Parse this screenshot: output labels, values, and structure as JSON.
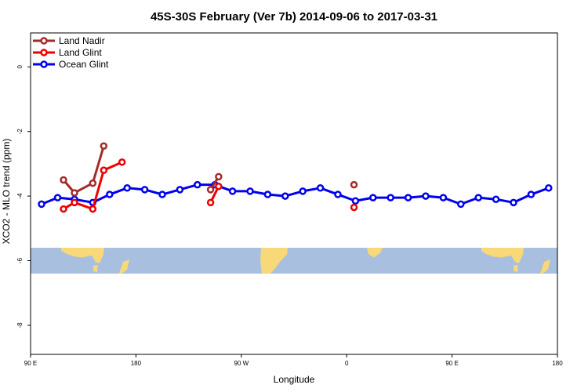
{
  "chart_data": {
    "type": "line",
    "title": "45S-30S February (Ver 7b)   2014-09-06 to 2017-03-31",
    "xlabel": "Longitude",
    "ylabel": "XCO2 - MLO trend (ppm)",
    "xlim": [
      90,
      450
    ],
    "ylim": [
      -8.9,
      1.05
    ],
    "x_ticks": [
      {
        "value": 90,
        "label": "90 E"
      },
      {
        "value": 162,
        "label": "180"
      },
      {
        "value": 234,
        "label": "90 W"
      },
      {
        "value": 306,
        "label": "0"
      },
      {
        "value": 378,
        "label": "90 E"
      },
      {
        "value": 450,
        "label": "180"
      }
    ],
    "y_ticks": [
      {
        "value": 0,
        "label": "0"
      },
      {
        "value": -2,
        "label": "-2"
      },
      {
        "value": -4,
        "label": "-4"
      },
      {
        "value": -6,
        "label": "-6"
      },
      {
        "value": -8,
        "label": "-8"
      }
    ],
    "legend_position": "top-left",
    "map_band": {
      "ymin": -6.4,
      "ymax": -5.6,
      "ocean_color": "#a9bfdf",
      "land_color": "#f8d878"
    },
    "series": [
      {
        "name": "Land Nadir",
        "color": "#a52a2a",
        "x": [
          112.5,
          120,
          132.5,
          140,
          213,
          218.5,
          311
        ],
        "y": [
          -3.5,
          -3.9,
          -3.6,
          -2.45,
          -3.8,
          -3.4,
          -3.65
        ]
      },
      {
        "name": "Land Glint",
        "color": "#ee0000",
        "x": [
          112.5,
          120,
          132.5,
          140,
          152.5,
          213,
          218.5,
          311
        ],
        "y": [
          -4.4,
          -4.2,
          -4.4,
          -3.2,
          -2.95,
          -4.2,
          -3.7,
          -4.35
        ]
      },
      {
        "name": "Ocean Glint",
        "color": "#0000ee",
        "x": [
          97.5,
          108.5,
          120,
          132.5,
          144,
          156,
          168,
          180,
          192,
          204,
          216,
          228,
          240,
          252,
          264,
          276,
          288,
          300,
          312,
          324,
          336,
          348,
          360,
          372,
          384,
          396,
          408,
          420,
          432,
          444
        ],
        "y": [
          -4.25,
          -4.05,
          -4.1,
          -4.2,
          -3.95,
          -3.75,
          -3.8,
          -3.95,
          -3.8,
          -3.65,
          -3.65,
          -3.85,
          -3.85,
          -3.95,
          -4.0,
          -3.85,
          -3.75,
          -3.95,
          -4.15,
          -4.05,
          -4.05,
          -4.05,
          -4.0,
          -4.05,
          -4.25,
          -4.05,
          -4.1,
          -4.2,
          -3.95,
          -3.75
        ]
      }
    ]
  }
}
